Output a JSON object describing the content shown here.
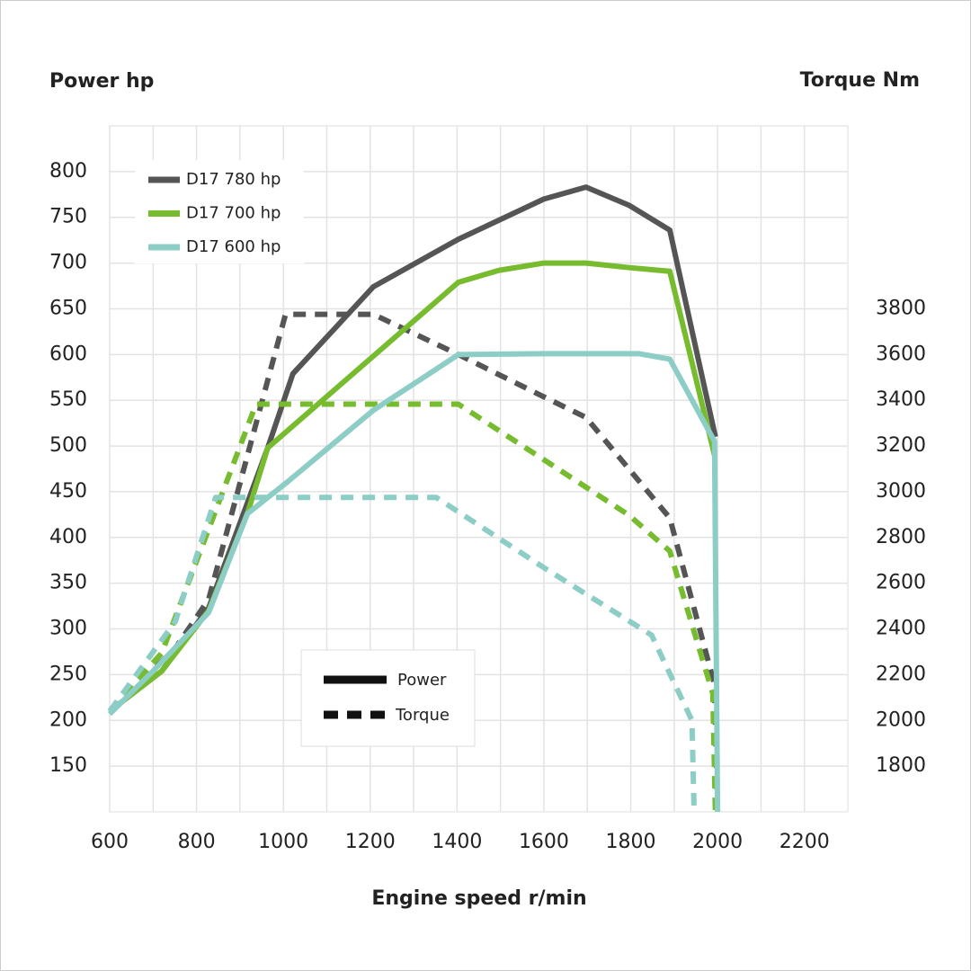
{
  "chart_data": {
    "type": "line",
    "y_title": "Power hp",
    "y2_title": "Torque Nm",
    "x_title": "Engine speed r/min",
    "xlim": [
      600,
      2300
    ],
    "xticks": [
      600,
      800,
      1000,
      1200,
      1400,
      1600,
      1800,
      2000,
      2200
    ],
    "ylim": [
      100,
      850
    ],
    "yticks": [
      150,
      200,
      250,
      300,
      350,
      400,
      450,
      500,
      550,
      600,
      650,
      700,
      750,
      800
    ],
    "y2lim": [
      1600,
      4600
    ],
    "y2ticks": [
      1800,
      2000,
      2200,
      2400,
      2600,
      2800,
      3000,
      3200,
      3400,
      3600,
      3800
    ],
    "grid": true,
    "legend": "upper left",
    "line_styles": {
      "solid": "Power",
      "dashed": "Torque"
    },
    "series": [
      {
        "name": "D17 780 hp",
        "color": "#555555",
        "power_x": [
          600,
          720,
          828,
          964,
          1022,
          1207,
          1403,
          1600,
          1697,
          1797,
          1890,
          1995
        ],
        "power": [
          210,
          254,
          323,
          498,
          579,
          674,
          726,
          770,
          783,
          763,
          736,
          510
        ],
        "torque_x": [
          600,
          751,
          828,
          1005,
          1207,
          1403,
          1600,
          1697,
          1890,
          1993,
          2000
        ],
        "torque": [
          2040,
          2315,
          2530,
          3776,
          3776,
          3600,
          3415,
          3325,
          2885,
          2157,
          1600
        ]
      },
      {
        "name": "D17 700 hp",
        "color": "#76bc2e",
        "power_x": [
          600,
          720,
          828,
          917,
          964,
          1403,
          1496,
          1600,
          1697,
          1797,
          1890,
          1993
        ],
        "power": [
          210,
          254,
          320,
          426,
          498,
          679,
          692,
          700,
          700,
          695,
          691,
          490
        ],
        "torque_x": [
          600,
          720,
          937,
          1403,
          1600,
          1797,
          1890,
          1989,
          1995
        ],
        "torque": [
          2040,
          2295,
          3383,
          3383,
          3140,
          2896,
          2740,
          2118,
          1600
        ]
      },
      {
        "name": "D17 600 hp",
        "color": "#8ccdc5",
        "power_x": [
          600,
          700,
          828,
          917,
          1010,
          1207,
          1320,
          1403,
          1600,
          1818,
          1890,
          1993,
          2000
        ],
        "power": [
          207,
          254,
          318,
          426,
          461,
          539,
          574,
          600,
          601,
          601,
          595,
          505,
          100
        ],
        "torque_x": [
          600,
          751,
          844,
          1352,
          1600,
          1848,
          1941,
          1946
        ],
        "torque": [
          2040,
          2432,
          2975,
          2975,
          2668,
          2373,
          2000,
          1600
        ]
      }
    ]
  }
}
